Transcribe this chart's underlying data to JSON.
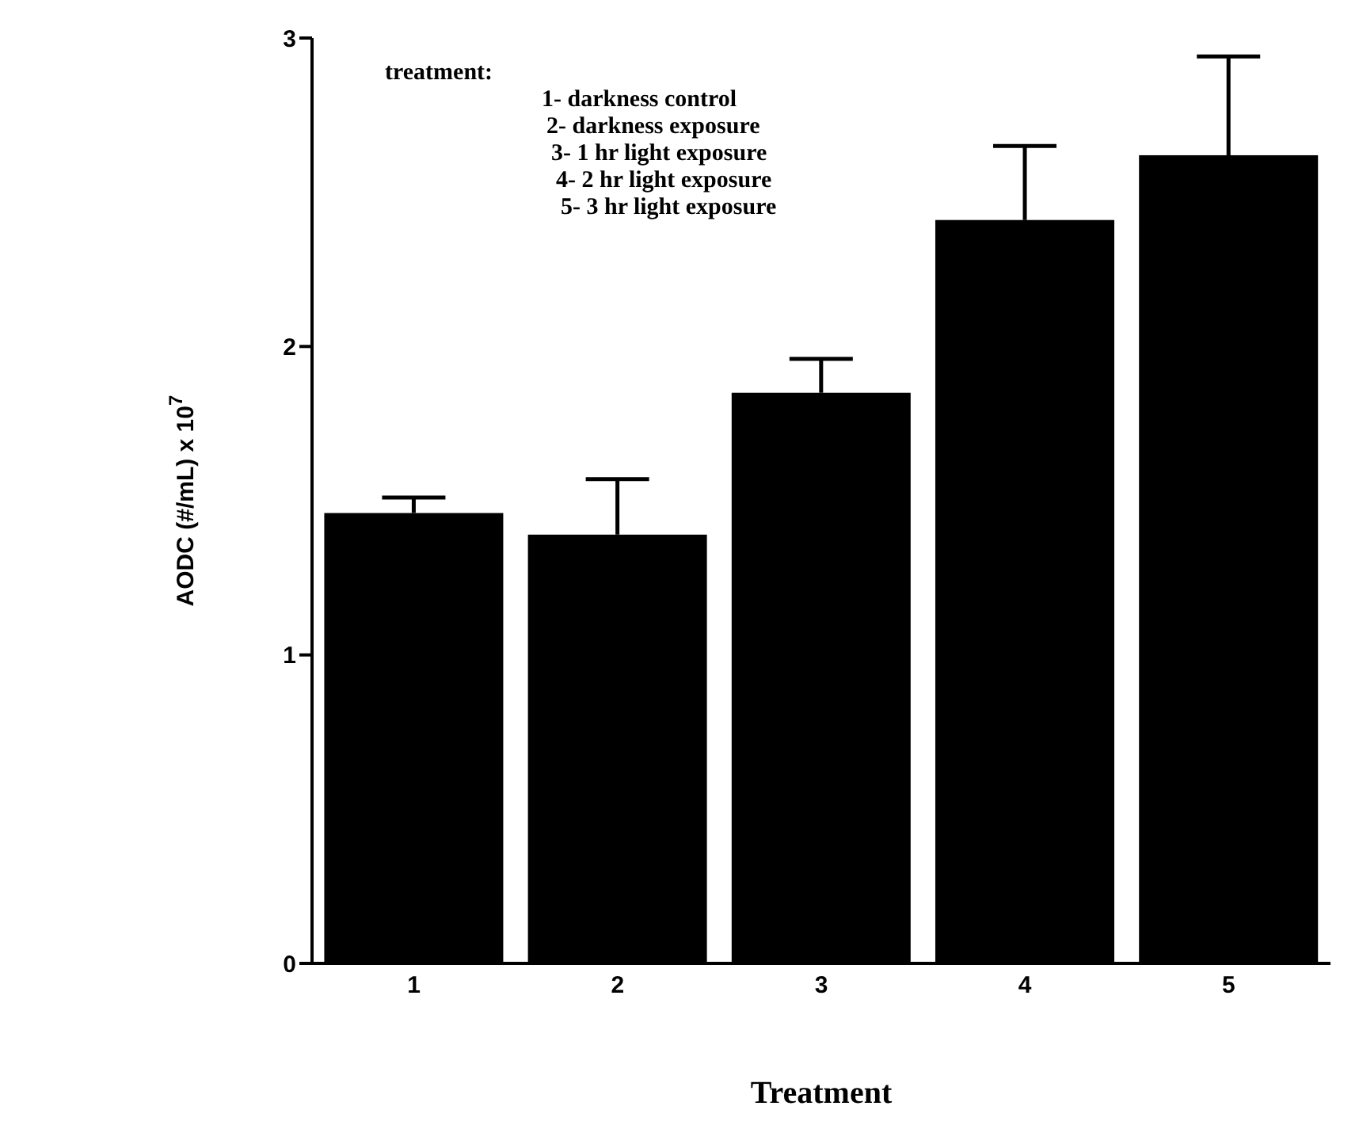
{
  "chart_data": {
    "type": "bar",
    "xlabel": "Treatment",
    "ylabel": "AODC (#/mL) x 10$^{7}$",
    "categories": [
      "1",
      "2",
      "3",
      "4",
      "5"
    ],
    "values": [
      1.46,
      1.39,
      1.85,
      2.41,
      2.62
    ],
    "errors": [
      [
        1.46,
        1.51
      ],
      [
        1.39,
        1.57
      ],
      [
        1.85,
        1.96
      ],
      [
        2.41,
        2.65
      ],
      [
        2.62,
        2.94
      ]
    ],
    "color": "#000000",
    "ylim": [
      0,
      3
    ],
    "yticks": [
      0,
      1,
      2,
      3
    ],
    "grid": false,
    "annotations": [
      "treatment:",
      "1- darkness control",
      "2- darkness exposure",
      "3- 1 hr light exposure",
      "4- 2 hr light exposure",
      "5- 3 hr light exposure"
    ]
  }
}
